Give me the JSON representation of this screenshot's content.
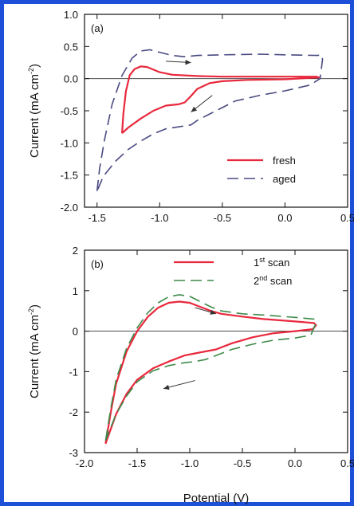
{
  "chart_data": [
    {
      "type": "line",
      "panel_label": "(a)",
      "ylabel_main": "Current (mA cm",
      "ylabel_sup": "-2",
      "ylabel_end": ")",
      "xlim": [
        -1.6,
        0.5
      ],
      "ylim": [
        -2.0,
        1.0
      ],
      "xticks": [
        -1.5,
        -1.0,
        -0.5,
        0.0,
        0.5
      ],
      "xtick_labels": [
        "-1.5",
        "-1.0",
        "-0.5",
        "0.0",
        "0.5"
      ],
      "yticks": [
        -2.0,
        -1.5,
        -1.0,
        -0.5,
        0.0,
        0.5,
        1.0
      ],
      "ytick_labels": [
        "-2.0",
        "-1.5",
        "-1.0",
        "-0.5",
        "0.0",
        "0.5",
        "1.0"
      ],
      "legend_position": "bottom-right",
      "series": [
        {
          "name": "fresh",
          "color": "#e8283c",
          "dash": "solid",
          "points": [
            [
              -1.3,
              -0.85
            ],
            [
              -1.29,
              -0.55
            ],
            [
              -1.27,
              -0.2
            ],
            [
              -1.24,
              0.05
            ],
            [
              -1.2,
              0.15
            ],
            [
              -1.15,
              0.19
            ],
            [
              -1.1,
              0.18
            ],
            [
              -1.05,
              0.14
            ],
            [
              -1.0,
              0.1
            ],
            [
              -0.9,
              0.06
            ],
            [
              -0.7,
              0.04
            ],
            [
              -0.5,
              0.03
            ],
            [
              0.0,
              0.03
            ],
            [
              0.25,
              0.03
            ],
            [
              0.27,
              0.02
            ],
            [
              0.0,
              -0.01
            ],
            [
              -0.3,
              -0.02
            ],
            [
              -0.5,
              -0.04
            ],
            [
              -0.6,
              -0.07
            ],
            [
              -0.7,
              -0.16
            ],
            [
              -0.75,
              -0.27
            ],
            [
              -0.8,
              -0.37
            ],
            [
              -0.85,
              -0.4
            ],
            [
              -0.95,
              -0.42
            ],
            [
              -1.05,
              -0.5
            ],
            [
              -1.15,
              -0.62
            ],
            [
              -1.25,
              -0.76
            ],
            [
              -1.3,
              -0.85
            ]
          ]
        },
        {
          "name": "aged",
          "color": "#4a4a82",
          "dash": "long-dash",
          "points": [
            [
              -1.5,
              -1.75
            ],
            [
              -1.48,
              -1.4
            ],
            [
              -1.44,
              -0.95
            ],
            [
              -1.38,
              -0.4
            ],
            [
              -1.3,
              0.05
            ],
            [
              -1.22,
              0.32
            ],
            [
              -1.15,
              0.43
            ],
            [
              -1.08,
              0.45
            ],
            [
              -1.0,
              0.41
            ],
            [
              -0.9,
              0.36
            ],
            [
              -0.8,
              0.34
            ],
            [
              -0.7,
              0.36
            ],
            [
              -0.5,
              0.37
            ],
            [
              -0.2,
              0.38
            ],
            [
              0.0,
              0.37
            ],
            [
              0.26,
              0.36
            ],
            [
              0.29,
              0.37
            ],
            [
              0.3,
              0.3
            ],
            [
              0.28,
              0.0
            ],
            [
              0.2,
              -0.1
            ],
            [
              0.0,
              -0.19
            ],
            [
              -0.2,
              -0.26
            ],
            [
              -0.4,
              -0.35
            ],
            [
              -0.5,
              -0.45
            ],
            [
              -0.6,
              -0.55
            ],
            [
              -0.7,
              -0.65
            ],
            [
              -0.75,
              -0.72
            ],
            [
              -0.85,
              -0.75
            ],
            [
              -0.95,
              -0.78
            ],
            [
              -1.05,
              -0.86
            ],
            [
              -1.15,
              -0.97
            ],
            [
              -1.25,
              -1.1
            ],
            [
              -1.35,
              -1.28
            ],
            [
              -1.45,
              -1.52
            ],
            [
              -1.5,
              -1.75
            ]
          ]
        }
      ],
      "arrows": [
        {
          "from": [
            -0.95,
            0.27
          ],
          "to": [
            -0.75,
            0.25
          ]
        },
        {
          "from": [
            -0.58,
            -0.26
          ],
          "to": [
            -0.75,
            -0.52
          ]
        }
      ]
    },
    {
      "type": "line",
      "panel_label": "(b)",
      "ylabel_main": "Current (mA cm",
      "ylabel_sup": "-2",
      "ylabel_end": ")",
      "xlabel": "Potential (V)",
      "xlim": [
        -2.0,
        0.5
      ],
      "ylim": [
        -3,
        2
      ],
      "xticks": [
        -2.0,
        -1.5,
        -1.0,
        -0.5,
        0.0,
        0.5
      ],
      "xtick_labels": [
        "-2.0",
        "-1.5",
        "-1.0",
        "-0.5",
        "0.0",
        "0.5"
      ],
      "yticks": [
        -3,
        -2,
        -1,
        0,
        1,
        2
      ],
      "ytick_labels": [
        "-3",
        "-2",
        "-1",
        "0",
        "1",
        "2"
      ],
      "legend_position": "top-right",
      "series": [
        {
          "name": "1",
          "name_sup": "st",
          "name_end": " scan",
          "color": "#e8283c",
          "dash": "solid",
          "points": [
            [
              -1.8,
              -2.78
            ],
            [
              -1.75,
              -2.0
            ],
            [
              -1.7,
              -1.3
            ],
            [
              -1.6,
              -0.5
            ],
            [
              -1.5,
              0.0
            ],
            [
              -1.4,
              0.35
            ],
            [
              -1.3,
              0.58
            ],
            [
              -1.2,
              0.7
            ],
            [
              -1.1,
              0.73
            ],
            [
              -1.0,
              0.7
            ],
            [
              -0.9,
              0.6
            ],
            [
              -0.8,
              0.5
            ],
            [
              -0.7,
              0.43
            ],
            [
              -0.5,
              0.36
            ],
            [
              -0.3,
              0.3
            ],
            [
              0.0,
              0.24
            ],
            [
              0.18,
              0.2
            ],
            [
              0.2,
              0.15
            ],
            [
              0.17,
              0.05
            ],
            [
              0.0,
              0.0
            ],
            [
              -0.2,
              -0.05
            ],
            [
              -0.4,
              -0.15
            ],
            [
              -0.6,
              -0.3
            ],
            [
              -0.75,
              -0.45
            ],
            [
              -0.85,
              -0.5
            ],
            [
              -0.95,
              -0.55
            ],
            [
              -1.05,
              -0.6
            ],
            [
              -1.2,
              -0.75
            ],
            [
              -1.35,
              -0.92
            ],
            [
              -1.5,
              -1.2
            ],
            [
              -1.6,
              -1.55
            ],
            [
              -1.7,
              -2.05
            ],
            [
              -1.8,
              -2.78
            ]
          ]
        },
        {
          "name": "2",
          "name_sup": "nd",
          "name_end": " scan",
          "color": "#3e8a4a",
          "dash": "long-dash",
          "points": [
            [
              -1.8,
              -2.7
            ],
            [
              -1.75,
              -1.9
            ],
            [
              -1.7,
              -1.2
            ],
            [
              -1.6,
              -0.42
            ],
            [
              -1.5,
              0.08
            ],
            [
              -1.4,
              0.45
            ],
            [
              -1.3,
              0.7
            ],
            [
              -1.2,
              0.85
            ],
            [
              -1.1,
              0.9
            ],
            [
              -1.0,
              0.86
            ],
            [
              -0.9,
              0.73
            ],
            [
              -0.8,
              0.6
            ],
            [
              -0.7,
              0.5
            ],
            [
              -0.5,
              0.43
            ],
            [
              -0.3,
              0.4
            ],
            [
              0.0,
              0.34
            ],
            [
              0.18,
              0.3
            ],
            [
              0.2,
              0.2
            ],
            [
              0.15,
              -0.1
            ],
            [
              0.0,
              -0.17
            ],
            [
              -0.2,
              -0.22
            ],
            [
              -0.4,
              -0.32
            ],
            [
              -0.6,
              -0.45
            ],
            [
              -0.75,
              -0.6
            ],
            [
              -0.85,
              -0.7
            ],
            [
              -0.95,
              -0.75
            ],
            [
              -1.05,
              -0.78
            ],
            [
              -1.2,
              -0.85
            ],
            [
              -1.35,
              -0.98
            ],
            [
              -1.5,
              -1.25
            ],
            [
              -1.6,
              -1.6
            ],
            [
              -1.7,
              -2.05
            ],
            [
              -1.8,
              -2.7
            ]
          ]
        }
      ],
      "arrows": [
        {
          "from": [
            -0.95,
            0.58
          ],
          "to": [
            -0.75,
            0.43
          ]
        },
        {
          "from": [
            -0.95,
            -1.22
          ],
          "to": [
            -1.25,
            -1.42
          ]
        }
      ]
    }
  ]
}
